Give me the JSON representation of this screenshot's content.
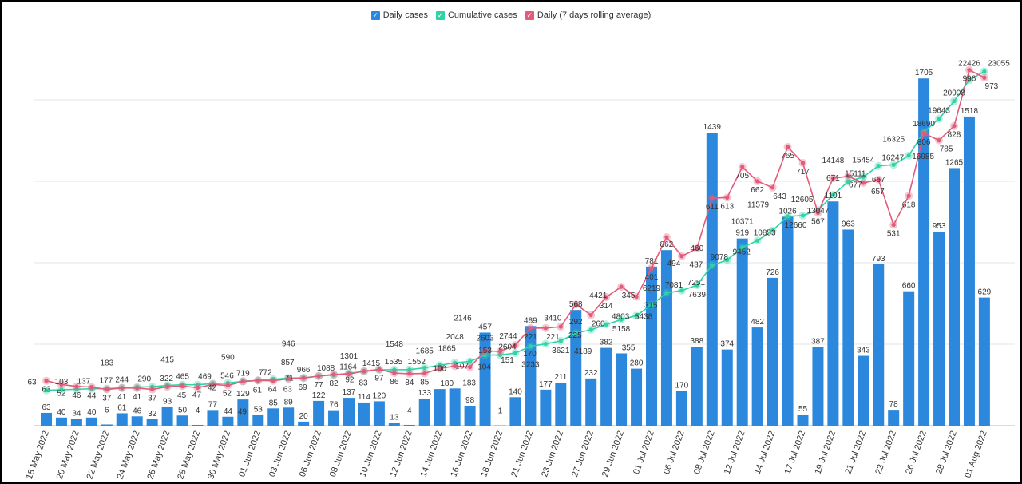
{
  "chart_data": {
    "type": "bar",
    "title": "",
    "xlabel": "",
    "ylabel": "",
    "legend_position": "top-center",
    "grid": true,
    "legend": [
      {
        "name": "Daily cases",
        "color": "#2b88dc"
      },
      {
        "name": "Cumulative cases",
        "color": "#2fd3a6"
      },
      {
        "name": "Daily (7 days rolling average)",
        "color": "#e25b7a"
      }
    ],
    "x_tick_labels": [
      "18 May 2022",
      "20 May 2022",
      "22 May 2022",
      "24 May 2022",
      "26 May 2022",
      "28 May 2022",
      "30 May 2022",
      "01 Jun 2022",
      "03 Jun 2022",
      "06 Jun 2022",
      "08 Jun 2022",
      "10 Jun 2022",
      "12 Jun 2022",
      "14 Jun 2022",
      "16 Jun 2022",
      "18 Jun 2022",
      "21 Jun 2022",
      "23 Jun 2022",
      "27 Jun 2022",
      "29 Jun 2022",
      "01 Jul 2022",
      "06 Jul 2022",
      "08 Jul 2022",
      "12 Jul 2022",
      "14 Jul 2022",
      "17 Jul 2022",
      "19 Jul 2022",
      "21 Jul 2022",
      "23 Jul 2022",
      "26 Jul 2022",
      "28 Jul 2022",
      "01 Aug 2022"
    ],
    "tick_every": 2,
    "axes": {
      "daily_ylim": [
        0,
        2000
      ],
      "daily_gridlines": [
        400,
        800,
        1200,
        1600
      ],
      "cumulative_ylim": [
        -2490,
        26880
      ],
      "rolling_ylim": [
        -72,
        1151
      ]
    },
    "series": [
      {
        "name": "Daily cases",
        "type": "bar",
        "values": [
          63,
          40,
          34,
          40,
          6,
          61,
          46,
          32,
          93,
          50,
          4,
          77,
          44,
          129,
          53,
          85,
          89,
          20,
          122,
          76,
          137,
          114,
          120,
          13,
          4,
          133,
          180,
          183,
          98,
          457,
          1,
          140,
          489,
          177,
          211,
          568,
          232,
          382,
          355,
          280,
          781,
          862,
          170,
          388,
          1439,
          374,
          919,
          482,
          726,
          1026,
          55,
          387,
          1101,
          963,
          343,
          793,
          78,
          660,
          1705,
          953,
          1265,
          1518,
          629
        ]
      },
      {
        "name": "Cumulative cases",
        "type": "line",
        "values": [
          63,
          103,
          137,
          177,
          183,
          244,
          290,
          322,
          415,
          465,
          469,
          546,
          590,
          719,
          772,
          857,
          946,
          966,
          1088,
          1164,
          1301,
          1415,
          1535,
          1548,
          1552,
          1685,
          1865,
          2048,
          2146,
          2603,
          2604,
          2744,
          3233,
          3410,
          3621,
          4189,
          4421,
          4803,
          5158,
          5438,
          6219,
          7081,
          7251,
          7639,
          9078,
          9452,
          10371,
          10853,
          11579,
          12605,
          12660,
          13047,
          14148,
          15111,
          15454,
          16247,
          16325,
          16985,
          18690,
          19643,
          20908,
          22426,
          23055
        ]
      },
      {
        "name": "Daily (7 days rolling average)",
        "type": "line",
        "values": [
          63,
          52,
          46,
          44,
          37,
          41,
          41,
          37,
          45,
          47,
          42,
          52,
          49,
          61,
          64,
          63,
          69,
          71,
          77,
          82,
          83,
          92,
          97,
          86,
          84,
          85,
          100,
          107,
          104,
          153,
          151,
          170,
          221,
          221,
          225,
          292,
          260,
          314,
          345,
          315,
          401,
          494,
          437,
          460,
          611,
          613,
          705,
          662,
          643,
          765,
          717,
          567,
          671,
          677,
          657,
          667,
          531,
          618,
          806,
          785,
          828,
          996,
          973
        ]
      }
    ]
  }
}
